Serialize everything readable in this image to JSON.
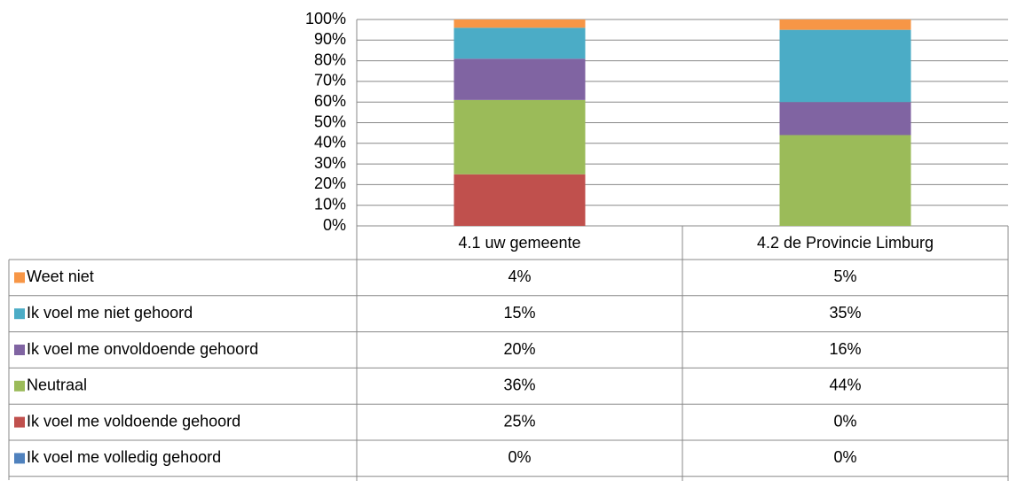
{
  "chart_data": {
    "type": "stacked_bar",
    "categories": [
      "4.1 uw gemeente",
      "4.2 de Provincie Limburg"
    ],
    "series": [
      {
        "name": "Ik voel me volledig gehoord",
        "color": "#4f81bd",
        "values": [
          0,
          0
        ],
        "value_labels": [
          "0%",
          "0%"
        ]
      },
      {
        "name": "Ik voel me voldoende gehoord",
        "color": "#c0504d",
        "values": [
          25,
          0
        ],
        "value_labels": [
          "25%",
          "0%"
        ]
      },
      {
        "name": "Neutraal",
        "color": "#9bbb59",
        "values": [
          36,
          44
        ],
        "value_labels": [
          "36%",
          "44%"
        ]
      },
      {
        "name": "Ik voel me onvoldoende gehoord",
        "color": "#8064a2",
        "values": [
          20,
          16
        ],
        "value_labels": [
          "20%",
          "16%"
        ]
      },
      {
        "name": "Ik voel me niet gehoord",
        "color": "#4bacc6",
        "values": [
          15,
          35
        ],
        "value_labels": [
          "15%",
          "35%"
        ]
      },
      {
        "name": "Weet niet",
        "color": "#f79646",
        "values": [
          4,
          5
        ],
        "value_labels": [
          "4%",
          "5%"
        ]
      }
    ],
    "ylim": [
      0,
      100
    ],
    "yticks": [
      {
        "value": 0,
        "label": "0%"
      },
      {
        "value": 10,
        "label": "10%"
      },
      {
        "value": 20,
        "label": "20%"
      },
      {
        "value": 30,
        "label": "30%"
      },
      {
        "value": 40,
        "label": "40%"
      },
      {
        "value": 50,
        "label": "50%"
      },
      {
        "value": 60,
        "label": "60%"
      },
      {
        "value": 70,
        "label": "70%"
      },
      {
        "value": 80,
        "label": "80%"
      },
      {
        "value": 90,
        "label": "90%"
      },
      {
        "value": 100,
        "label": "100%"
      }
    ],
    "grid": true
  }
}
